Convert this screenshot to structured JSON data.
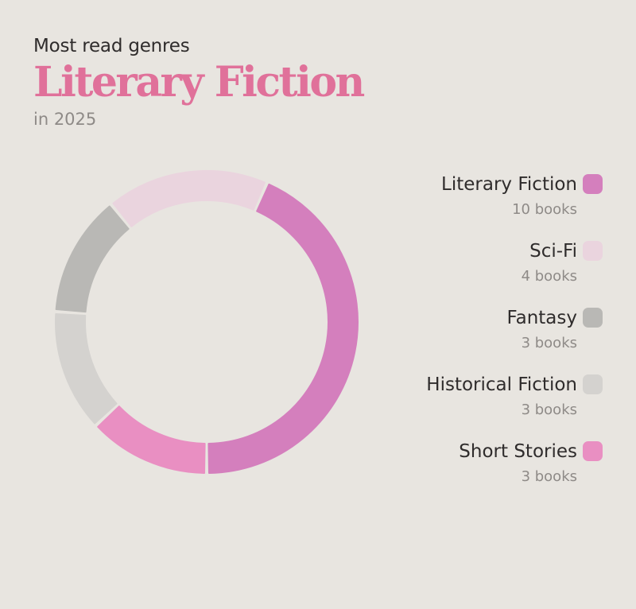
{
  "header": {
    "eyebrow": "Most read genres",
    "headline": "Literary Fiction",
    "subline": "in 2025"
  },
  "chart_data": {
    "type": "pie",
    "variant": "donut",
    "title": "Most read genres",
    "categories": [
      "Literary Fiction",
      "Sci-Fi",
      "Fantasy",
      "Historical Fiction",
      "Short Stories"
    ],
    "values": [
      10,
      4,
      3,
      3,
      3
    ],
    "unit": "books",
    "colors": [
      "#d47fbd",
      "#ead4de",
      "#b9b8b5",
      "#d4d2cf",
      "#e98fc2"
    ],
    "legend_position": "right",
    "legend": [
      {
        "label": "Literary Fiction",
        "count": "10 books",
        "color": "#d47fbd"
      },
      {
        "label": "Sci-Fi",
        "count": "4 books",
        "color": "#ead4de"
      },
      {
        "label": "Fantasy",
        "count": "3 books",
        "color": "#b9b8b5"
      },
      {
        "label": "Historical Fiction",
        "count": "3 books",
        "color": "#d4d2cf"
      },
      {
        "label": "Short Stories",
        "count": "3 books",
        "color": "#e98fc2"
      }
    ]
  }
}
